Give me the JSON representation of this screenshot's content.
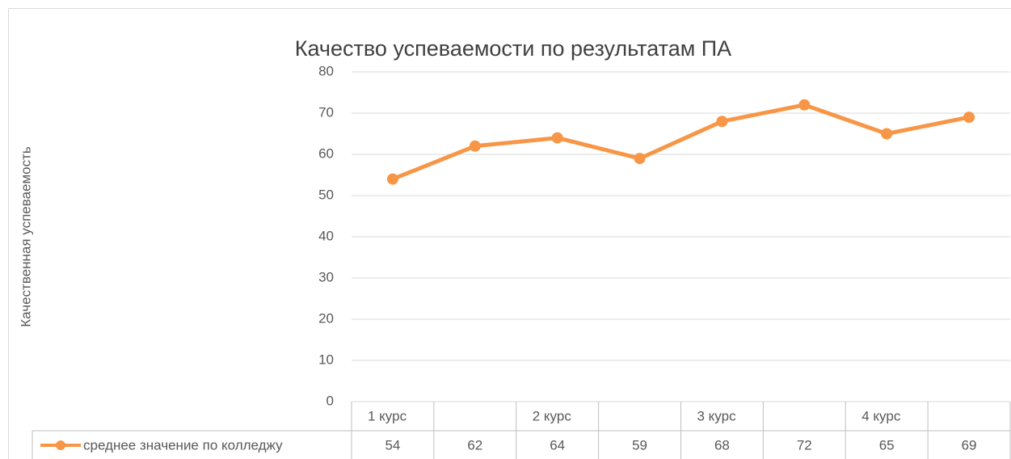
{
  "chart_data": {
    "type": "line",
    "title": "Качество успеваемости по результатам ПА",
    "y_label": "Качественная успеваемость",
    "categories": [
      "1 курс",
      null,
      "2 курс",
      null,
      "3 курс",
      null,
      "4 курс",
      null
    ],
    "series": [
      {
        "name": "среднее значение по колледжу",
        "color": "#f79646",
        "values": [
          54,
          62,
          64,
          59,
          68,
          72,
          65,
          69
        ]
      }
    ],
    "ylim": [
      0,
      80
    ],
    "yticks": [
      0,
      10,
      20,
      30,
      40,
      50,
      60,
      70,
      80
    ],
    "grid": true,
    "data_table": true
  }
}
